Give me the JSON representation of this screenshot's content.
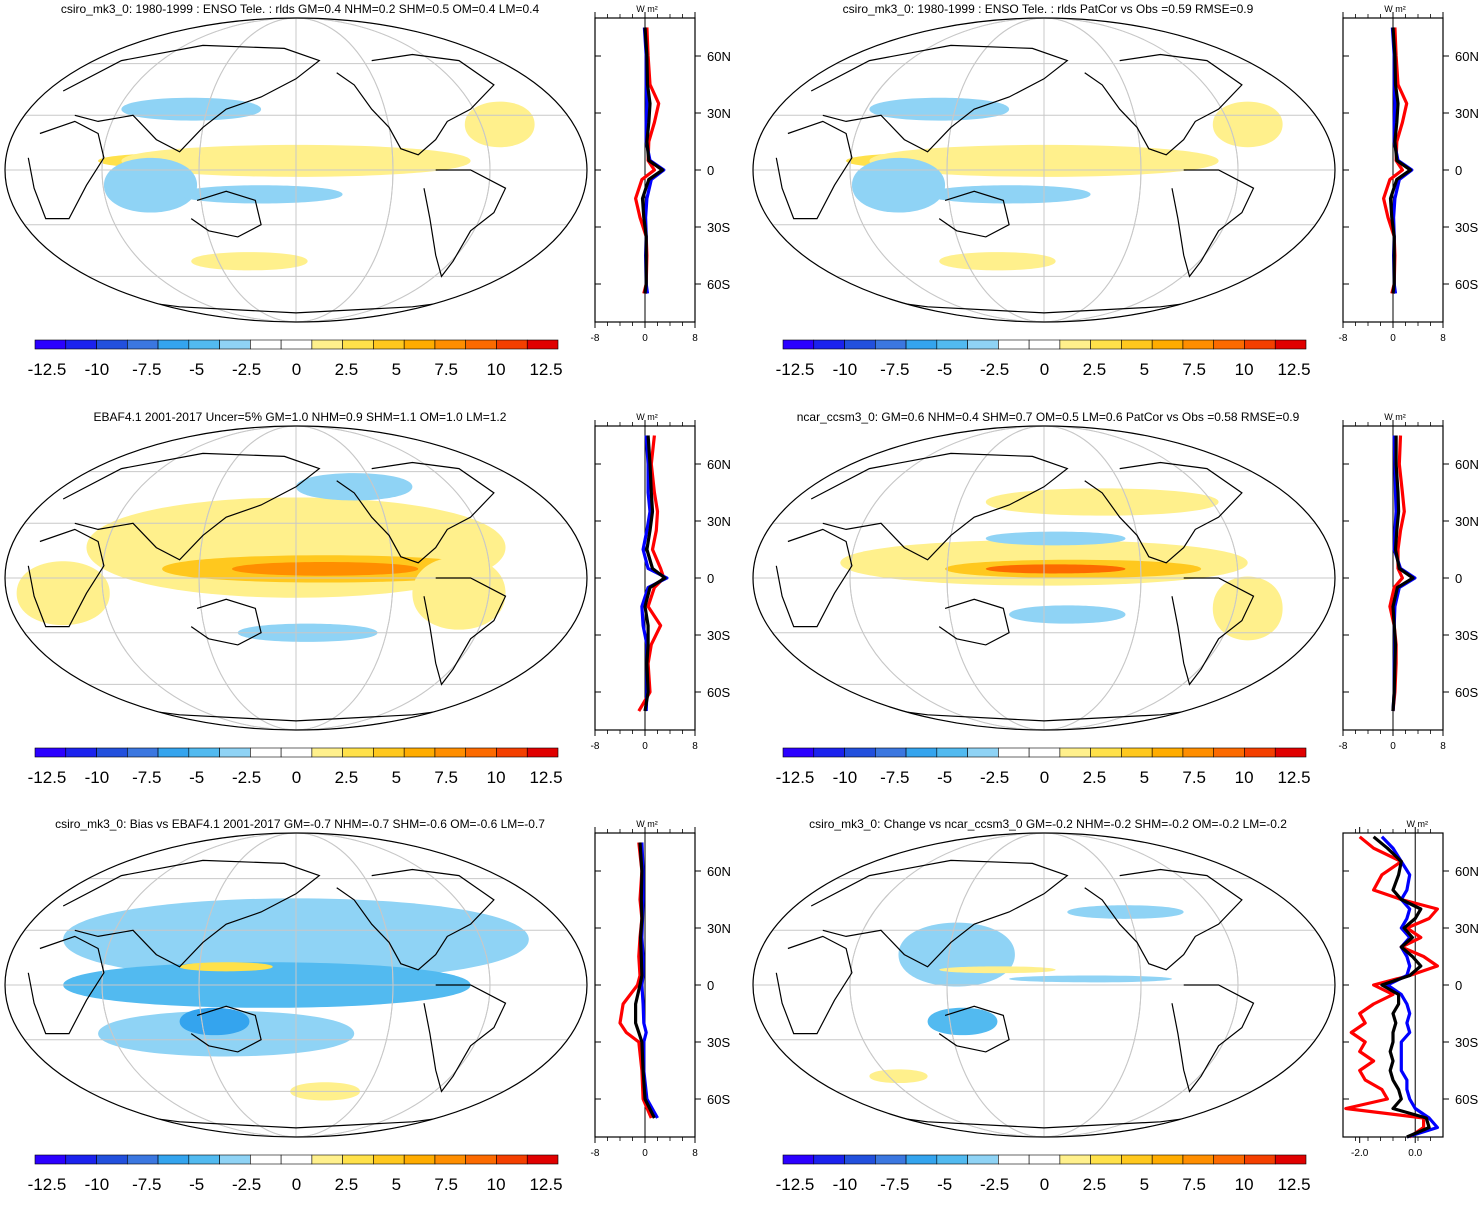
{
  "chart_data": [
    {
      "type": "map",
      "title": "csiro_mk3_0: 1980-1999 : ENSO Tele. : rlds GM=0.4 NHM=0.2 SHM=0.5 OM=0.4 LM=0.4",
      "colorbar_labels": [
        "-12.5",
        "-10",
        "-7.5",
        "-5",
        "-2.5",
        "0",
        "2.5",
        "5",
        "7.5",
        "10",
        "12.5"
      ],
      "zonal": {
        "unit": "W m²",
        "x_ticks": [
          "-8",
          "0",
          "8"
        ],
        "y_ticks": [
          "60N",
          "30N",
          "0",
          "30S",
          "60S"
        ],
        "xlim": [
          -8,
          8
        ],
        "ylim": [
          -80,
          80
        ],
        "series": [
          {
            "color": "#ff0000",
            "lat": [
              75,
              60,
              45,
              35,
              25,
              15,
              5,
              0,
              -5,
              -15,
              -25,
              -35,
              -45,
              -60,
              -65
            ],
            "values": [
              0.3,
              0.5,
              0.8,
              2.2,
              1.5,
              0.6,
              0.5,
              1.5,
              -0.5,
              -1.5,
              -0.8,
              0.2,
              0.3,
              0.2,
              -0.2
            ]
          },
          {
            "color": "#0000ff",
            "lat": [
              75,
              60,
              45,
              35,
              25,
              15,
              5,
              0,
              -5,
              -15,
              -25,
              -35,
              -45,
              -60,
              -65
            ],
            "values": [
              -0.1,
              0.2,
              0.2,
              0.3,
              0.2,
              0.2,
              0.8,
              3.0,
              1.0,
              0.3,
              0.1,
              0.2,
              0.1,
              0.2,
              0.4
            ]
          },
          {
            "color": "#000000",
            "lat": [
              75,
              60,
              45,
              35,
              25,
              15,
              5,
              0,
              -5,
              -15,
              -25,
              -35,
              -45,
              -60,
              -65
            ],
            "values": [
              0.0,
              0.3,
              0.4,
              0.8,
              0.6,
              0.3,
              0.6,
              2.8,
              0.6,
              -0.4,
              -0.2,
              0.2,
              0.2,
              0.2,
              0.0
            ]
          }
        ]
      }
    },
    {
      "type": "map",
      "title": "csiro_mk3_0: 1980-1999 : ENSO Tele. : rlds PatCor vs Obs =0.59 RMSE=0.9",
      "colorbar_labels": [
        "-12.5",
        "-10",
        "-7.5",
        "-5",
        "-2.5",
        "0",
        "2.5",
        "5",
        "7.5",
        "10",
        "12.5"
      ],
      "zonal": {
        "unit": "W m²",
        "x_ticks": [
          "-8",
          "0",
          "8"
        ],
        "y_ticks": [
          "60N",
          "30N",
          "0",
          "30S",
          "60S"
        ],
        "xlim": [
          -8,
          8
        ],
        "ylim": [
          -80,
          80
        ],
        "series": [
          {
            "color": "#ff0000",
            "lat": [
              75,
              60,
              45,
              35,
              25,
              15,
              5,
              0,
              -5,
              -15,
              -25,
              -35,
              -45,
              -60,
              -65
            ],
            "values": [
              0.3,
              0.5,
              0.8,
              2.2,
              1.5,
              0.6,
              0.5,
              1.5,
              -0.5,
              -1.5,
              -0.8,
              0.2,
              0.3,
              0.2,
              -0.2
            ]
          },
          {
            "color": "#0000ff",
            "lat": [
              75,
              60,
              45,
              35,
              25,
              15,
              5,
              0,
              -5,
              -15,
              -25,
              -35,
              -45,
              -60,
              -65
            ],
            "values": [
              -0.1,
              0.2,
              0.2,
              0.3,
              0.2,
              0.2,
              0.8,
              3.0,
              1.0,
              0.3,
              0.1,
              0.2,
              0.1,
              0.2,
              0.4
            ]
          },
          {
            "color": "#000000",
            "lat": [
              75,
              60,
              45,
              35,
              25,
              15,
              5,
              0,
              -5,
              -15,
              -25,
              -35,
              -45,
              -60,
              -65
            ],
            "values": [
              0.0,
              0.3,
              0.4,
              0.8,
              0.6,
              0.3,
              0.6,
              2.8,
              0.6,
              -0.4,
              -0.2,
              0.2,
              0.2,
              0.2,
              0.0
            ]
          }
        ]
      }
    },
    {
      "type": "map",
      "title": "EBAF4.1 2001-2017 Uncer=5% GM=1.0 NHM=0.9 SHM=1.1 OM=1.0 LM=1.2",
      "colorbar_labels": [
        "-12.5",
        "-10",
        "-7.5",
        "-5",
        "-2.5",
        "0",
        "2.5",
        "5",
        "7.5",
        "10",
        "12.5"
      ],
      "zonal": {
        "unit": "W m²",
        "x_ticks": [
          "-8",
          "0",
          "8"
        ],
        "y_ticks": [
          "60N",
          "30N",
          "0",
          "30S",
          "60S"
        ],
        "xlim": [
          -8,
          8
        ],
        "ylim": [
          -80,
          80
        ],
        "series": [
          {
            "color": "#ff0000",
            "lat": [
              75,
              60,
              45,
              35,
              25,
              15,
              5,
              0,
              -5,
              -15,
              -25,
              -35,
              -45,
              -60,
              -70
            ],
            "values": [
              1.5,
              1.0,
              1.5,
              2.0,
              1.8,
              1.2,
              2.5,
              3.0,
              1.5,
              0.5,
              2.5,
              1.0,
              0.5,
              0.8,
              -1.0
            ]
          },
          {
            "color": "#0000ff",
            "lat": [
              75,
              60,
              45,
              35,
              25,
              15,
              5,
              0,
              -5,
              -15,
              -25,
              -35,
              -45,
              -60,
              -70
            ],
            "values": [
              0.2,
              0.5,
              0.5,
              0.8,
              0.3,
              -0.3,
              0.5,
              3.5,
              0.5,
              -0.5,
              -0.3,
              0.3,
              0.3,
              0.3,
              0.2
            ]
          },
          {
            "color": "#000000",
            "lat": [
              75,
              60,
              45,
              35,
              25,
              15,
              5,
              0,
              -5,
              -15,
              -25,
              -35,
              -45,
              -60,
              -70
            ],
            "values": [
              0.5,
              0.8,
              1.0,
              1.2,
              0.8,
              0.3,
              1.2,
              3.2,
              0.8,
              0.0,
              0.5,
              0.5,
              0.3,
              0.5,
              0.0
            ]
          }
        ]
      }
    },
    {
      "type": "map",
      "title": "ncar_ccsm3_0: GM=0.6 NHM=0.4 SHM=0.7 OM=0.5 LM=0.6 PatCor vs Obs =0.58 RMSE=0.9",
      "colorbar_labels": [
        "-12.5",
        "-10",
        "-7.5",
        "-5",
        "-2.5",
        "0",
        "2.5",
        "5",
        "7.5",
        "10",
        "12.5"
      ],
      "zonal": {
        "unit": "W m²",
        "x_ticks": [
          "-8",
          "0",
          "8"
        ],
        "y_ticks": [
          "60N",
          "30N",
          "0",
          "30S",
          "60S"
        ],
        "xlim": [
          -8,
          8
        ],
        "ylim": [
          -80,
          80
        ],
        "series": [
          {
            "color": "#ff0000",
            "lat": [
              75,
              60,
              45,
              35,
              25,
              15,
              5,
              0,
              -5,
              -15,
              -25,
              -35,
              -45,
              -60,
              -70
            ],
            "values": [
              1.2,
              1.0,
              1.5,
              1.8,
              1.2,
              0.8,
              0.8,
              1.5,
              0.2,
              -0.5,
              0.2,
              0.5,
              0.5,
              0.3,
              0.0
            ]
          },
          {
            "color": "#0000ff",
            "lat": [
              75,
              60,
              45,
              35,
              25,
              15,
              5,
              0,
              -5,
              -15,
              -25,
              -35,
              -45,
              -60,
              -70
            ],
            "values": [
              0.2,
              0.3,
              0.4,
              0.5,
              0.3,
              0.2,
              1.2,
              3.5,
              1.0,
              0.3,
              0.2,
              0.3,
              0.2,
              0.2,
              0.0
            ]
          },
          {
            "color": "#000000",
            "lat": [
              75,
              60,
              45,
              35,
              25,
              15,
              5,
              0,
              -5,
              -15,
              -25,
              -35,
              -45,
              -60,
              -70
            ],
            "values": [
              0.5,
              0.5,
              0.8,
              0.9,
              0.6,
              0.4,
              1.0,
              3.2,
              0.7,
              0.0,
              0.2,
              0.4,
              0.3,
              0.2,
              0.0
            ]
          }
        ]
      }
    },
    {
      "type": "map",
      "title": "csiro_mk3_0: Bias vs EBAF4.1 2001-2017 GM=-0.7 NHM=-0.7 SHM=-0.6 OM=-0.6 LM=-0.7",
      "colorbar_labels": [
        "-12.5",
        "-10",
        "-7.5",
        "-5",
        "-2.5",
        "0",
        "2.5",
        "5",
        "7.5",
        "10",
        "12.5"
      ],
      "zonal": {
        "unit": "W m²",
        "x_ticks": [
          "-8",
          "0",
          "8"
        ],
        "y_ticks": [
          "60N",
          "30N",
          "0",
          "30S",
          "60S"
        ],
        "xlim": [
          -8,
          8
        ],
        "ylim": [
          -80,
          80
        ],
        "series": [
          {
            "color": "#ff0000",
            "lat": [
              75,
              60,
              45,
              35,
              25,
              15,
              5,
              0,
              -10,
              -20,
              -25,
              -30,
              -45,
              -60,
              -70
            ],
            "values": [
              -1.0,
              -0.5,
              -0.8,
              -0.5,
              -0.8,
              -1.0,
              -0.8,
              -1.2,
              -3.5,
              -4.0,
              -3.0,
              -1.0,
              -0.5,
              -0.3,
              1.0
            ]
          },
          {
            "color": "#0000ff",
            "lat": [
              75,
              60,
              45,
              35,
              25,
              15,
              5,
              0,
              -10,
              -20,
              -25,
              -30,
              -45,
              -60,
              -70
            ],
            "values": [
              -0.5,
              -0.3,
              -0.3,
              -0.4,
              -0.5,
              -0.3,
              -0.3,
              -0.5,
              -0.3,
              -0.2,
              0.2,
              -0.2,
              -0.2,
              0.3,
              2.0
            ]
          },
          {
            "color": "#000000",
            "lat": [
              75,
              60,
              45,
              35,
              25,
              15,
              5,
              0,
              -10,
              -20,
              -25,
              -30,
              -45,
              -60,
              -70
            ],
            "values": [
              -0.8,
              -0.5,
              -0.6,
              -0.5,
              -0.7,
              -0.6,
              -0.5,
              -0.8,
              -1.5,
              -1.5,
              -1.0,
              -0.5,
              -0.3,
              0.0,
              1.5
            ]
          }
        ]
      }
    },
    {
      "type": "map",
      "title": "csiro_mk3_0: Change vs ncar_ccsm3_0 GM=-0.2 NHM=-0.2 SHM=-0.2 OM=-0.2 LM=-0.2",
      "colorbar_labels": [
        "-12.5",
        "-10",
        "-7.5",
        "-5",
        "-2.5",
        "0",
        "2.5",
        "5",
        "7.5",
        "10",
        "12.5"
      ],
      "zonal": {
        "unit": "W m²",
        "x_ticks": [
          "-2.0",
          "0.0"
        ],
        "y_ticks": [
          "60N",
          "30N",
          "0",
          "30S",
          "60S"
        ],
        "xlim": [
          -2.6,
          1.0
        ],
        "ylim": [
          -80,
          80
        ],
        "series": [
          {
            "color": "#ff0000",
            "lat": [
              78,
              72,
              65,
              58,
              50,
              45,
              40,
              35,
              30,
              25,
              20,
              15,
              10,
              5,
              0,
              -5,
              -10,
              -15,
              -20,
              -25,
              -30,
              -35,
              -40,
              -45,
              -50,
              -55,
              -60,
              -65,
              -70,
              -75,
              -80
            ],
            "values": [
              -2.0,
              -1.5,
              -0.5,
              -1.2,
              -1.5,
              -0.5,
              0.8,
              0.5,
              -0.3,
              0.2,
              -0.5,
              0.3,
              0.8,
              -0.2,
              -1.5,
              -0.8,
              -1.5,
              -2.0,
              -1.8,
              -2.3,
              -1.8,
              -2.0,
              -1.5,
              -2.0,
              -1.8,
              -1.2,
              -1.0,
              -2.5,
              0.3,
              0.3,
              -0.2
            ]
          },
          {
            "color": "#0000ff",
            "lat": [
              78,
              72,
              65,
              58,
              50,
              45,
              40,
              35,
              30,
              25,
              20,
              15,
              10,
              5,
              0,
              -5,
              -10,
              -15,
              -20,
              -25,
              -30,
              -35,
              -40,
              -45,
              -50,
              -55,
              -60,
              -65,
              -70,
              -75,
              -80
            ],
            "values": [
              -1.2,
              -0.8,
              -0.5,
              -0.2,
              -0.3,
              -0.5,
              -0.2,
              -0.3,
              -0.5,
              -0.2,
              -0.5,
              -0.3,
              -0.2,
              -0.3,
              -1.0,
              -0.5,
              -0.3,
              -0.2,
              -0.3,
              -0.2,
              -0.5,
              -0.5,
              -0.5,
              -0.5,
              -0.3,
              -0.3,
              -0.2,
              0.0,
              0.5,
              0.8,
              -0.3
            ]
          },
          {
            "color": "#000000",
            "lat": [
              78,
              72,
              65,
              58,
              50,
              45,
              40,
              35,
              30,
              25,
              20,
              15,
              10,
              5,
              0,
              -5,
              -10,
              -15,
              -20,
              -25,
              -30,
              -35,
              -40,
              -45,
              -50,
              -55,
              -60,
              -65,
              -70,
              -75,
              -80
            ],
            "values": [
              -1.5,
              -1.0,
              -0.5,
              -0.6,
              -0.8,
              -0.5,
              0.2,
              0.0,
              -0.4,
              -0.1,
              -0.5,
              -0.1,
              0.2,
              -0.2,
              -1.2,
              -0.6,
              -0.6,
              -0.8,
              -0.7,
              -0.8,
              -0.8,
              -0.9,
              -0.8,
              -0.9,
              -0.8,
              -0.6,
              -0.5,
              -0.8,
              0.4,
              0.5,
              -0.3
            ]
          }
        ]
      }
    }
  ]
}
